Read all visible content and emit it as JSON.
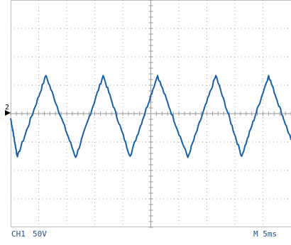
{
  "chart_data": {
    "type": "line",
    "title": "",
    "xlabel": "",
    "ylabel": "",
    "channel_label": "CH1",
    "vertical_scale": "50V",
    "timebase": "M 5ms",
    "ground_marker": "2",
    "grid": true,
    "divisions": {
      "x": 10,
      "y": 8
    },
    "xlim": [
      0,
      50
    ],
    "ylim": [
      -200,
      200
    ],
    "series": [
      {
        "x": [
          0,
          1.2,
          6.3,
          11.6,
          16.5,
          21.3,
          26.2,
          31.6,
          36.6,
          41.2,
          46.0,
          50.0
        ],
        "values": [
          -8,
          -76,
          67,
          -77,
          67,
          -75,
          67,
          -77,
          67,
          -75,
          67,
          -46
        ],
        "color": "#1560a8"
      }
    ]
  }
}
